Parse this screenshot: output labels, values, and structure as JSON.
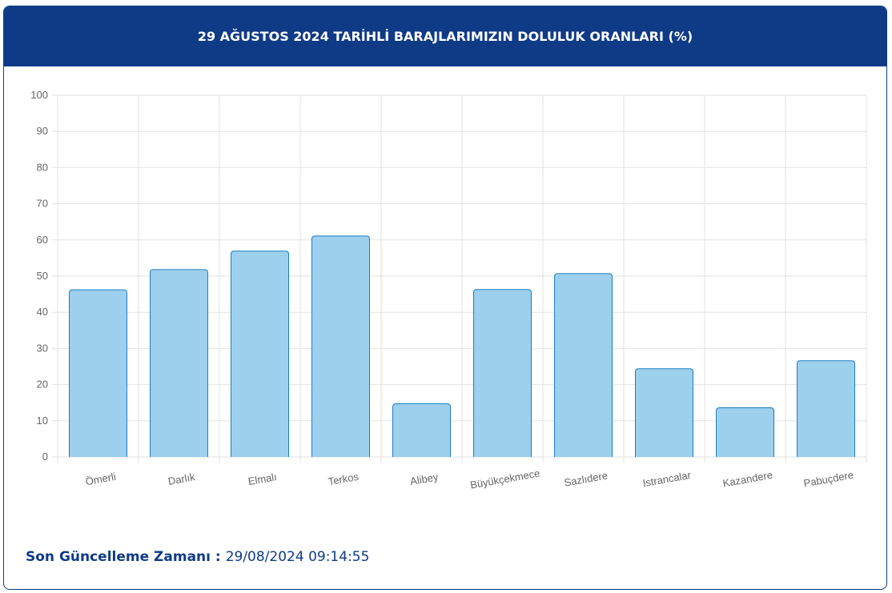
{
  "chart_data": {
    "type": "bar",
    "title": "29 AĞUSTOS 2024 TARİHLİ BARAJLARIMIZIN DOLULUK ORANLARI (%)",
    "categories": [
      "Ömerli",
      "Darlık",
      "Elmalı",
      "Terkos",
      "Alibey",
      "Büyükçekmece",
      "Sazlıdere",
      "Istrancalar",
      "Kazandere",
      "Pabuçdere"
    ],
    "values": [
      46.2,
      51.8,
      56.9,
      61.1,
      14.7,
      46.3,
      50.7,
      24.4,
      13.6,
      26.6
    ],
    "color": "#9dd0ec",
    "edge_color": "#1a7fc4",
    "ylim": [
      0,
      100
    ],
    "yticks": [
      0,
      10,
      20,
      30,
      40,
      50,
      60,
      70,
      80,
      90,
      100
    ],
    "grid": true
  },
  "footer": {
    "label": "Son Güncelleme Zamanı :",
    "value": "29/08/2024 09:14:55"
  }
}
